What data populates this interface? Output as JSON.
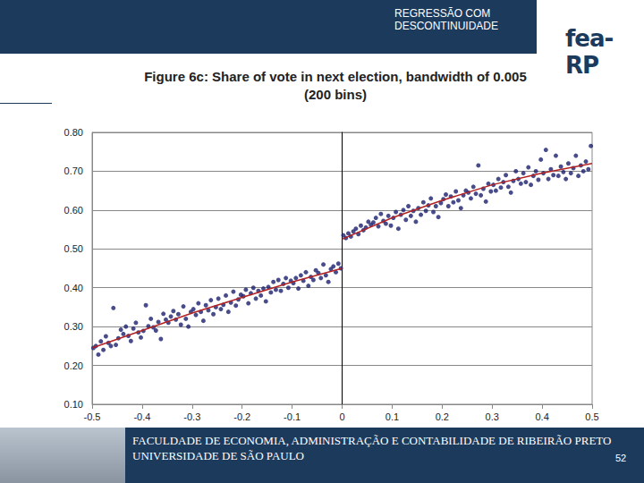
{
  "slide": {
    "header": [
      "REGRESSÃO COM",
      "DESCONTINUIDADE"
    ],
    "logo": "fea-RP",
    "footer": [
      "FACULDADE DE ECONOMIA, ADMINISTRAÇÃO E CONTABILIDADE DE RIBEIRÃO PRETO",
      "UNIVERSIDADE DE SÃO PAULO"
    ],
    "page": 52
  },
  "chart_data": {
    "type": "scatter",
    "title": "Figure 6c: Share of vote in next election, bandwidth of 0.005\n(200 bins)",
    "xlim": [
      -0.5,
      0.5
    ],
    "xticks": [
      -0.5,
      -0.4,
      -0.3,
      -0.2,
      -0.1,
      0,
      0.1,
      0.2,
      0.3,
      0.4,
      0.5
    ],
    "ylim": [
      0.1,
      0.8
    ],
    "yticks": [
      {
        "value": 0.1,
        "label": "0.10"
      },
      {
        "value": 0.2,
        "label": "0.20"
      },
      {
        "value": 0.3,
        "label": "0.30"
      },
      {
        "value": 0.4,
        "label": "0.40"
      },
      {
        "value": 0.5,
        "label": "0.50"
      },
      {
        "value": 0.6,
        "label": "0.60"
      },
      {
        "value": 0.7,
        "label": "0.70"
      },
      {
        "value": 0.8,
        "label": "0.80"
      }
    ],
    "grid": true,
    "series": [
      {
        "type": "scatter",
        "color": "#1a1f6e",
        "marker": "circle",
        "x": [
          -0.4975,
          -0.4925,
          -0.4875,
          -0.4825,
          -0.4775,
          -0.4725,
          -0.4675,
          -0.4625,
          -0.4575,
          -0.4525,
          -0.4475,
          -0.4425,
          -0.4375,
          -0.4325,
          -0.4275,
          -0.4225,
          -0.4175,
          -0.4125,
          -0.4075,
          -0.4025,
          -0.3975,
          -0.3925,
          -0.3875,
          -0.3825,
          -0.3775,
          -0.3725,
          -0.3675,
          -0.3625,
          -0.3575,
          -0.3525,
          -0.3475,
          -0.3425,
          -0.3375,
          -0.3325,
          -0.3275,
          -0.3225,
          -0.3175,
          -0.3125,
          -0.3075,
          -0.3025,
          -0.2975,
          -0.2925,
          -0.2875,
          -0.2825,
          -0.2775,
          -0.2725,
          -0.2675,
          -0.2625,
          -0.2575,
          -0.2525,
          -0.2475,
          -0.2425,
          -0.2375,
          -0.2325,
          -0.2275,
          -0.2225,
          -0.2175,
          -0.2125,
          -0.2075,
          -0.2025,
          -0.1975,
          -0.1925,
          -0.1875,
          -0.1825,
          -0.1775,
          -0.1725,
          -0.1675,
          -0.1625,
          -0.1575,
          -0.1525,
          -0.1475,
          -0.1425,
          -0.1375,
          -0.1325,
          -0.1275,
          -0.1225,
          -0.1175,
          -0.1125,
          -0.1075,
          -0.1025,
          -0.0975,
          -0.0925,
          -0.0875,
          -0.0825,
          -0.0775,
          -0.0725,
          -0.0675,
          -0.0625,
          -0.0575,
          -0.0525,
          -0.0475,
          -0.0425,
          -0.0375,
          -0.0325,
          -0.0275,
          -0.0225,
          -0.0175,
          -0.0125,
          -0.0075,
          -0.0025,
          0.0025,
          0.0075,
          0.0125,
          0.0175,
          0.0225,
          0.0275,
          0.0325,
          0.0375,
          0.0425,
          0.0475,
          0.0525,
          0.0575,
          0.0625,
          0.0675,
          0.0725,
          0.0775,
          0.0825,
          0.0875,
          0.0925,
          0.0975,
          0.1025,
          0.1075,
          0.1125,
          0.1175,
          0.1225,
          0.1275,
          0.1325,
          0.1375,
          0.1425,
          0.1475,
          0.1525,
          0.1575,
          0.1625,
          0.1675,
          0.1725,
          0.1775,
          0.1825,
          0.1875,
          0.1925,
          0.1975,
          0.2025,
          0.2075,
          0.2125,
          0.2175,
          0.2225,
          0.2275,
          0.2325,
          0.2375,
          0.2425,
          0.2475,
          0.2525,
          0.2575,
          0.2625,
          0.2675,
          0.2725,
          0.2775,
          0.2825,
          0.2875,
          0.2925,
          0.2975,
          0.3025,
          0.3075,
          0.3125,
          0.3175,
          0.3225,
          0.3275,
          0.3325,
          0.3375,
          0.3425,
          0.3475,
          0.3525,
          0.3575,
          0.3625,
          0.3675,
          0.3725,
          0.3775,
          0.3825,
          0.3875,
          0.3925,
          0.3975,
          0.4025,
          0.4075,
          0.4125,
          0.4175,
          0.4225,
          0.4275,
          0.4325,
          0.4375,
          0.4425,
          0.4475,
          0.4525,
          0.4575,
          0.4625,
          0.4675,
          0.4725,
          0.4775,
          0.4825,
          0.4875,
          0.4925,
          0.4975
        ],
        "values": [
          0.245,
          0.25,
          0.228,
          0.262,
          0.24,
          0.275,
          0.258,
          0.25,
          0.348,
          0.253,
          0.27,
          0.292,
          0.281,
          0.3,
          0.276,
          0.263,
          0.295,
          0.31,
          0.285,
          0.272,
          0.289,
          0.355,
          0.301,
          0.32,
          0.298,
          0.29,
          0.312,
          0.268,
          0.333,
          0.318,
          0.31,
          0.326,
          0.34,
          0.318,
          0.332,
          0.305,
          0.352,
          0.32,
          0.3,
          0.338,
          0.345,
          0.33,
          0.36,
          0.338,
          0.315,
          0.355,
          0.342,
          0.368,
          0.332,
          0.35,
          0.372,
          0.345,
          0.356,
          0.38,
          0.338,
          0.362,
          0.39,
          0.354,
          0.37,
          0.382,
          0.378,
          0.395,
          0.36,
          0.386,
          0.4,
          0.372,
          0.392,
          0.38,
          0.398,
          0.365,
          0.402,
          0.388,
          0.415,
          0.395,
          0.42,
          0.392,
          0.41,
          0.425,
          0.4,
          0.418,
          0.412,
          0.425,
          0.398,
          0.432,
          0.418,
          0.44,
          0.405,
          0.428,
          0.42,
          0.445,
          0.438,
          0.425,
          0.46,
          0.432,
          0.415,
          0.448,
          0.455,
          0.44,
          0.462,
          0.45,
          0.535,
          0.528,
          0.54,
          0.532,
          0.545,
          0.552,
          0.538,
          0.56,
          0.548,
          0.555,
          0.57,
          0.562,
          0.568,
          0.58,
          0.558,
          0.59,
          0.572,
          0.565,
          0.585,
          0.56,
          0.58,
          0.595,
          0.552,
          0.588,
          0.6,
          0.575,
          0.61,
          0.585,
          0.598,
          0.57,
          0.605,
          0.588,
          0.62,
          0.598,
          0.612,
          0.63,
          0.595,
          0.61,
          0.582,
          0.618,
          0.628,
          0.64,
          0.61,
          0.635,
          0.62,
          0.648,
          0.625,
          0.605,
          0.638,
          0.65,
          0.645,
          0.63,
          0.66,
          0.642,
          0.715,
          0.638,
          0.655,
          0.622,
          0.668,
          0.648,
          0.665,
          0.65,
          0.68,
          0.658,
          0.672,
          0.69,
          0.66,
          0.645,
          0.675,
          0.7,
          0.68,
          0.668,
          0.695,
          0.672,
          0.71,
          0.665,
          0.688,
          0.7,
          0.678,
          0.73,
          0.695,
          0.755,
          0.68,
          0.705,
          0.69,
          0.74,
          0.688,
          0.712,
          0.698,
          0.68,
          0.72,
          0.695,
          0.708,
          0.74,
          0.688,
          0.715,
          0.7,
          0.725,
          0.705,
          0.765
        ]
      },
      {
        "type": "line",
        "color": "#b22222",
        "line_style": "solid",
        "x": [
          -0.5,
          -0.4,
          -0.3,
          -0.2,
          -0.1,
          0
        ],
        "values": [
          0.245,
          0.29,
          0.335,
          0.375,
          0.415,
          0.45
        ]
      },
      {
        "type": "line",
        "color": "#b22222",
        "line_style": "solid",
        "x": [
          0,
          0.1,
          0.2,
          0.3,
          0.4,
          0.5
        ],
        "values": [
          0.525,
          0.58,
          0.625,
          0.665,
          0.695,
          0.72
        ]
      }
    ]
  }
}
